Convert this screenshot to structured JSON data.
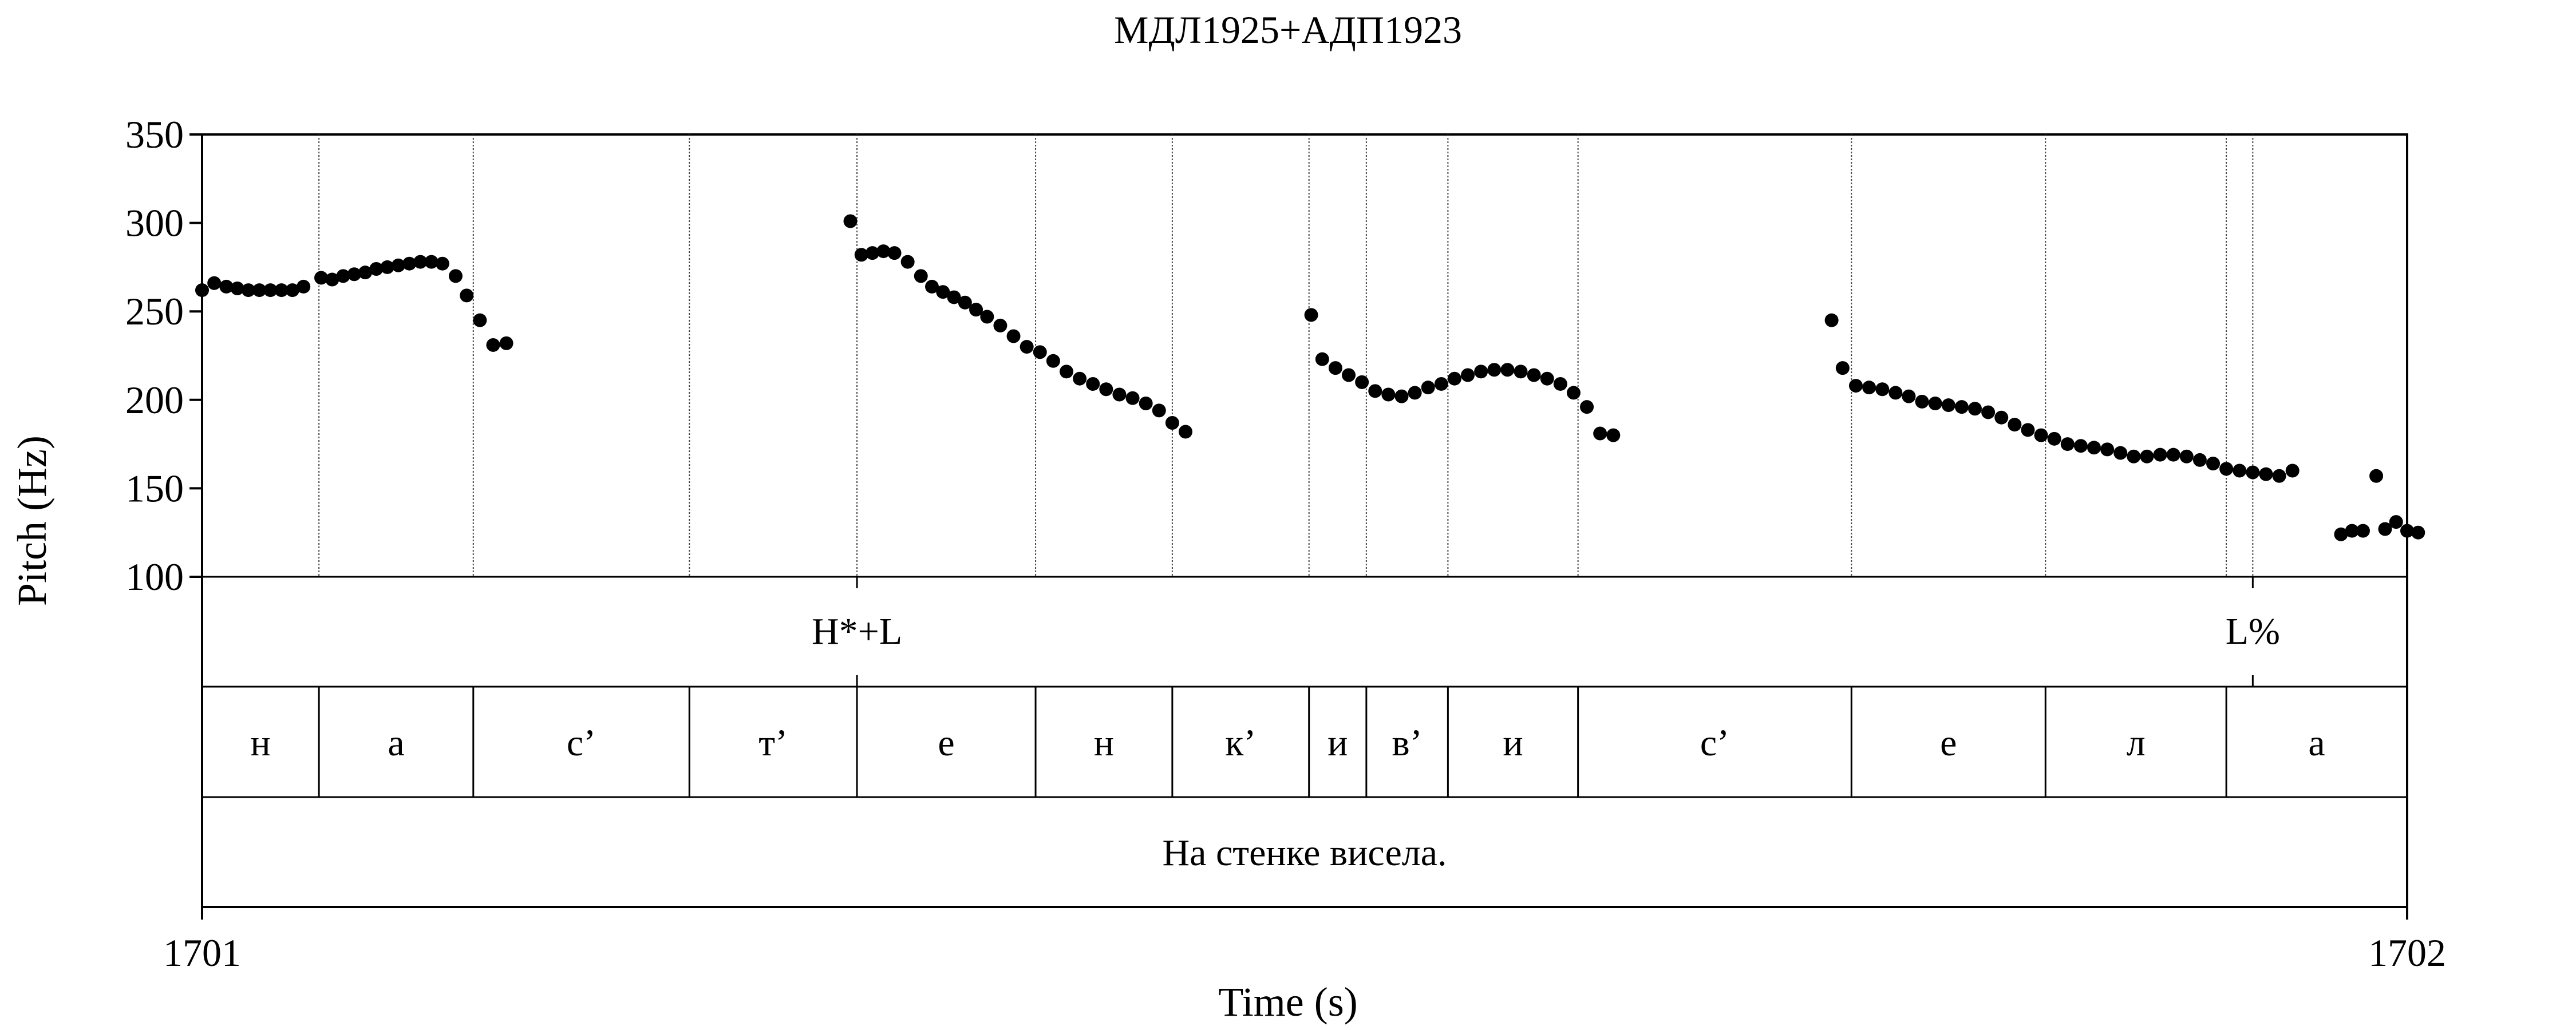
{
  "chart_data": {
    "type": "scatter",
    "title": "МДЛ1925+АДП1923",
    "xlabel": "Time (s)",
    "ylabel": "Pitch (Hz)",
    "xlim": [
      1701,
      1702
    ],
    "ylim": [
      100,
      350
    ],
    "x_tick_labels": [
      "1701",
      "1702"
    ],
    "y_ticks": [
      100,
      150,
      200,
      250,
      300,
      350
    ],
    "y_tick_labels": [
      "100",
      "150",
      "200",
      "250",
      "300",
      "350"
    ],
    "series": [
      {
        "values": [
          [
            0.0,
            262
          ],
          [
            0.0055,
            266
          ],
          [
            0.011,
            264
          ],
          [
            0.016,
            263
          ],
          [
            0.021,
            262
          ],
          [
            0.026,
            262
          ],
          [
            0.031,
            262
          ],
          [
            0.036,
            262
          ],
          [
            0.041,
            262
          ],
          [
            0.046,
            264
          ],
          [
            0.054,
            269
          ],
          [
            0.059,
            268
          ],
          [
            0.064,
            270
          ],
          [
            0.069,
            271
          ],
          [
            0.074,
            272
          ],
          [
            0.079,
            274
          ],
          [
            0.084,
            275
          ],
          [
            0.089,
            276
          ],
          [
            0.094,
            277
          ],
          [
            0.099,
            278
          ],
          [
            0.104,
            278
          ],
          [
            0.109,
            277
          ],
          [
            0.115,
            270
          ],
          [
            0.12,
            259
          ],
          [
            0.126,
            245
          ],
          [
            0.132,
            231
          ],
          [
            0.138,
            232
          ],
          [
            0.294,
            301
          ],
          [
            0.299,
            282
          ],
          [
            0.304,
            283
          ],
          [
            0.309,
            284
          ],
          [
            0.314,
            283
          ],
          [
            0.32,
            278
          ],
          [
            0.326,
            270
          ],
          [
            0.331,
            264
          ],
          [
            0.336,
            261
          ],
          [
            0.341,
            258
          ],
          [
            0.346,
            255
          ],
          [
            0.351,
            251
          ],
          [
            0.356,
            247
          ],
          [
            0.362,
            242
          ],
          [
            0.368,
            236
          ],
          [
            0.374,
            230
          ],
          [
            0.38,
            227
          ],
          [
            0.386,
            222
          ],
          [
            0.392,
            216
          ],
          [
            0.398,
            212
          ],
          [
            0.404,
            209
          ],
          [
            0.41,
            206
          ],
          [
            0.416,
            203
          ],
          [
            0.422,
            201
          ],
          [
            0.428,
            198
          ],
          [
            0.434,
            194
          ],
          [
            0.44,
            187
          ],
          [
            0.446,
            182
          ],
          [
            0.503,
            248
          ],
          [
            0.508,
            223
          ],
          [
            0.514,
            218
          ],
          [
            0.52,
            214
          ],
          [
            0.526,
            210
          ],
          [
            0.532,
            205
          ],
          [
            0.538,
            203
          ],
          [
            0.544,
            202
          ],
          [
            0.55,
            204
          ],
          [
            0.556,
            207
          ],
          [
            0.562,
            209
          ],
          [
            0.568,
            212
          ],
          [
            0.574,
            214
          ],
          [
            0.58,
            216
          ],
          [
            0.586,
            217
          ],
          [
            0.592,
            217
          ],
          [
            0.598,
            216
          ],
          [
            0.604,
            214
          ],
          [
            0.61,
            212
          ],
          [
            0.616,
            209
          ],
          [
            0.622,
            204
          ],
          [
            0.628,
            196
          ],
          [
            0.634,
            181
          ],
          [
            0.64,
            180
          ],
          [
            0.739,
            245
          ],
          [
            0.744,
            218
          ],
          [
            0.75,
            208
          ],
          [
            0.756,
            207
          ],
          [
            0.762,
            206
          ],
          [
            0.768,
            204
          ],
          [
            0.774,
            202
          ],
          [
            0.78,
            199
          ],
          [
            0.786,
            198
          ],
          [
            0.792,
            197
          ],
          [
            0.798,
            196
          ],
          [
            0.804,
            195
          ],
          [
            0.81,
            193
          ],
          [
            0.816,
            190
          ],
          [
            0.822,
            186
          ],
          [
            0.828,
            183
          ],
          [
            0.834,
            180
          ],
          [
            0.84,
            178
          ],
          [
            0.846,
            175
          ],
          [
            0.852,
            174
          ],
          [
            0.858,
            173
          ],
          [
            0.864,
            172
          ],
          [
            0.87,
            170
          ],
          [
            0.876,
            168
          ],
          [
            0.882,
            168
          ],
          [
            0.888,
            169
          ],
          [
            0.894,
            169
          ],
          [
            0.9,
            168
          ],
          [
            0.906,
            166
          ],
          [
            0.912,
            164
          ],
          [
            0.918,
            161
          ],
          [
            0.924,
            160
          ],
          [
            0.93,
            159
          ],
          [
            0.936,
            158
          ],
          [
            0.942,
            157
          ],
          [
            0.948,
            160
          ],
          [
            0.97,
            124
          ],
          [
            0.975,
            126
          ],
          [
            0.98,
            126
          ],
          [
            0.986,
            157
          ],
          [
            0.99,
            127
          ],
          [
            0.995,
            131
          ],
          [
            1.0,
            126
          ],
          [
            1.005,
            125
          ]
        ]
      }
    ],
    "tiers": {
      "tones": [
        {
          "label": "H*+L",
          "time": 0.297
        },
        {
          "label": "L%",
          "time": 0.93
        }
      ],
      "phonemes": [
        {
          "label": "н",
          "start": 0.0,
          "end": 0.053
        },
        {
          "label": "а",
          "start": 0.053,
          "end": 0.123
        },
        {
          "label": "с’",
          "start": 0.123,
          "end": 0.221
        },
        {
          "label": "т’",
          "start": 0.221,
          "end": 0.297
        },
        {
          "label": "е",
          "start": 0.297,
          "end": 0.378
        },
        {
          "label": "н",
          "start": 0.378,
          "end": 0.44
        },
        {
          "label": "к’",
          "start": 0.44,
          "end": 0.502
        },
        {
          "label": "и",
          "start": 0.502,
          "end": 0.528
        },
        {
          "label": "в’",
          "start": 0.528,
          "end": 0.565
        },
        {
          "label": "и",
          "start": 0.565,
          "end": 0.624
        },
        {
          "label": "с’",
          "start": 0.624,
          "end": 0.748
        },
        {
          "label": "е",
          "start": 0.748,
          "end": 0.836
        },
        {
          "label": "л",
          "start": 0.836,
          "end": 0.918
        },
        {
          "label": "а",
          "start": 0.918,
          "end": 1.0
        }
      ],
      "sentence": "На стенке висела."
    }
  }
}
